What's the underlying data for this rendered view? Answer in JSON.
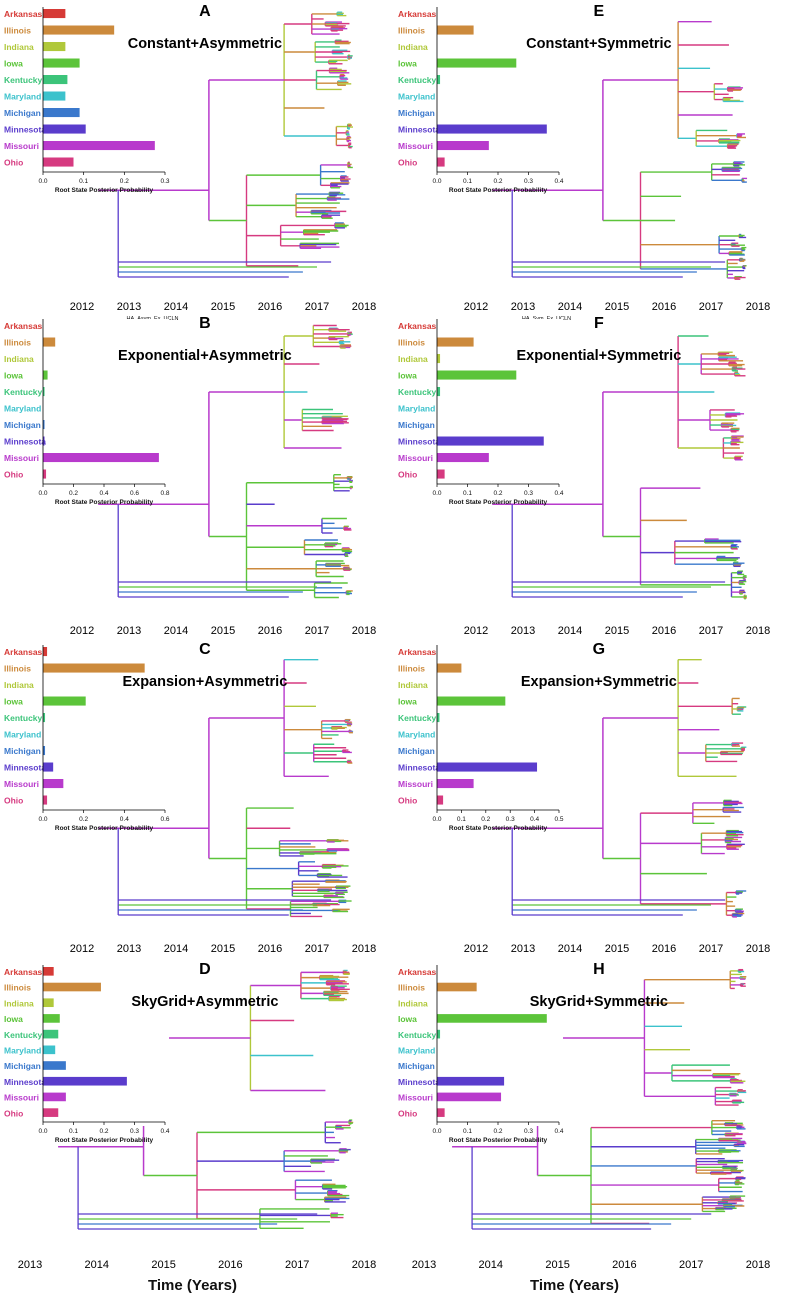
{
  "states": [
    {
      "name": "Arkansas",
      "color": "#d63a36"
    },
    {
      "name": "Illinois",
      "color": "#cc8a3c"
    },
    {
      "name": "Indiana",
      "color": "#b0c83a"
    },
    {
      "name": "Iowa",
      "color": "#5cc43a"
    },
    {
      "name": "Kentucky",
      "color": "#3cc47a"
    },
    {
      "name": "Maryland",
      "color": "#3cc2cc"
    },
    {
      "name": "Michigan",
      "color": "#3a78cc"
    },
    {
      "name": "Minnesota",
      "color": "#5a3ccc"
    },
    {
      "name": "Missouri",
      "color": "#b83acc"
    },
    {
      "name": "Ohio",
      "color": "#d63a80"
    }
  ],
  "axis_label": "Root State Posterior Probability",
  "time_axis_title": "Time (Years)",
  "chart_data": [
    {
      "panel": "A",
      "title": "Constant+Asymmetric",
      "type": "bar",
      "orientation": "horizontal",
      "values": [
        0.055,
        0.175,
        0.055,
        0.09,
        0.06,
        0.055,
        0.09,
        0.105,
        0.275,
        0.075
      ],
      "xlim": [
        0,
        0.3
      ],
      "xticks": [
        "0.0",
        "0.1",
        "0.2",
        "0.3"
      ],
      "tree_label": "HA_Asym_Ex_UCLN",
      "time_ticks": [
        "2012",
        "2013",
        "2014",
        "2015",
        "2016",
        "2017",
        "2018"
      ]
    },
    {
      "panel": "E",
      "title": "Constant+Symmetric",
      "type": "bar",
      "orientation": "horizontal",
      "values": [
        0.0,
        0.12,
        0.0,
        0.26,
        0.01,
        0.0,
        0.0,
        0.36,
        0.17,
        0.025
      ],
      "xlim": [
        0,
        0.4
      ],
      "xticks": [
        "0.0",
        "0.1",
        "0.2",
        "0.3",
        "0.4"
      ],
      "tree_label": "HA_Sym_Ex_UCLN",
      "time_ticks": [
        "2012",
        "2013",
        "2014",
        "2015",
        "2016",
        "2017",
        "2018"
      ]
    },
    {
      "panel": "B",
      "title": "Exponential+Asymmetric",
      "type": "bar",
      "orientation": "horizontal",
      "values": [
        0.0,
        0.08,
        0.0,
        0.03,
        0.01,
        0.0,
        0.01,
        0.01,
        0.76,
        0.02
      ],
      "xlim": [
        0,
        0.8
      ],
      "xticks": [
        "0.0",
        "0.2",
        "0.4",
        "0.6",
        "0.8"
      ],
      "time_ticks": [
        "2012",
        "2013",
        "2014",
        "2015",
        "2016",
        "2017",
        "2018"
      ]
    },
    {
      "panel": "F",
      "title": "Exponential+Symmetric",
      "type": "bar",
      "orientation": "horizontal",
      "values": [
        0.0,
        0.12,
        0.01,
        0.26,
        0.01,
        0.0,
        0.0,
        0.35,
        0.17,
        0.025
      ],
      "xlim": [
        0,
        0.4
      ],
      "xticks": [
        "0.0",
        "0.1",
        "0.2",
        "0.3",
        "0.4"
      ],
      "time_ticks": [
        "2012",
        "2013",
        "2014",
        "2015",
        "2016",
        "2017",
        "2018"
      ]
    },
    {
      "panel": "C",
      "title": "Expansion+Asymmetric",
      "type": "bar",
      "orientation": "horizontal",
      "values": [
        0.02,
        0.5,
        0.0,
        0.21,
        0.01,
        0.0,
        0.01,
        0.05,
        0.1,
        0.02
      ],
      "xlim": [
        0,
        0.6
      ],
      "xticks": [
        "0.0",
        "0.2",
        "0.4",
        "0.6"
      ],
      "time_ticks": [
        "2012",
        "2013",
        "2014",
        "2015",
        "2016",
        "2017",
        "2018"
      ]
    },
    {
      "panel": "G",
      "title": "Expansion+Symmetric",
      "type": "bar",
      "orientation": "horizontal",
      "values": [
        0.0,
        0.1,
        0.0,
        0.28,
        0.01,
        0.0,
        0.0,
        0.41,
        0.15,
        0.025
      ],
      "xlim": [
        0,
        0.5
      ],
      "xticks": [
        "0.0",
        "0.1",
        "0.2",
        "0.3",
        "0.4",
        "0.5"
      ],
      "time_ticks": [
        "2012",
        "2013",
        "2014",
        "2015",
        "2016",
        "2017",
        "2018"
      ]
    },
    {
      "panel": "D",
      "title": "SkyGrid+Asymmetric",
      "type": "bar",
      "orientation": "horizontal",
      "values": [
        0.035,
        0.19,
        0.035,
        0.055,
        0.05,
        0.04,
        0.075,
        0.275,
        0.075,
        0.05
      ],
      "xlim": [
        0,
        0.4
      ],
      "xticks": [
        "0.0",
        "0.1",
        "0.2",
        "0.3",
        "0.4"
      ],
      "time_ticks": [
        "2013",
        "2014",
        "2015",
        "2016",
        "2017",
        "2018"
      ]
    },
    {
      "panel": "H",
      "title": "SkyGrid+Symmetric",
      "type": "bar",
      "orientation": "horizontal",
      "values": [
        0.0,
        0.13,
        0.0,
        0.36,
        0.01,
        0.0,
        0.0,
        0.22,
        0.21,
        0.025
      ],
      "xlim": [
        0,
        0.4
      ],
      "xticks": [
        "0.0",
        "0.1",
        "0.2",
        "0.3",
        "0.4"
      ],
      "time_ticks": [
        "2013",
        "2014",
        "2015",
        "2016",
        "2017",
        "2018"
      ]
    }
  ]
}
